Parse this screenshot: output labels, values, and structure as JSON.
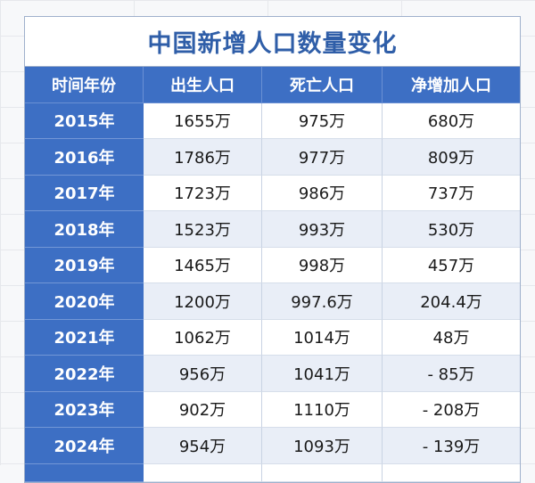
{
  "title": "中国新增人口数量变化",
  "headers": [
    "时间年份",
    "出生人口",
    "死亡人口",
    "净增加人口"
  ],
  "rows": [
    {
      "year": "2015年",
      "births": "1655万",
      "deaths": "975万",
      "net": "680万"
    },
    {
      "year": "2016年",
      "births": "1786万",
      "deaths": "977万",
      "net": "809万"
    },
    {
      "year": "2017年",
      "births": "1723万",
      "deaths": "986万",
      "net": "737万"
    },
    {
      "year": "2018年",
      "births": "1523万",
      "deaths": "993万",
      "net": "530万"
    },
    {
      "year": "2019年",
      "births": "1465万",
      "deaths": "998万",
      "net": "457万"
    },
    {
      "year": "2020年",
      "births": "1200万",
      "deaths": "997.6万",
      "net": "204.4万"
    },
    {
      "year": "2021年",
      "births": "1062万",
      "deaths": "1014万",
      "net": "48万"
    },
    {
      "year": "2022年",
      "births": "956万",
      "deaths": "1041万",
      "net": "- 85万"
    },
    {
      "year": "2023年",
      "births": "902万",
      "deaths": "1110万",
      "net": "- 208万"
    },
    {
      "year": "2024年",
      "births": "954万",
      "deaths": "1093万",
      "net": "- 139万"
    }
  ],
  "colors": {
    "header_bg": "#3d6fc4",
    "title": "#2f5ea8",
    "alt_row": "#e9eef7"
  }
}
